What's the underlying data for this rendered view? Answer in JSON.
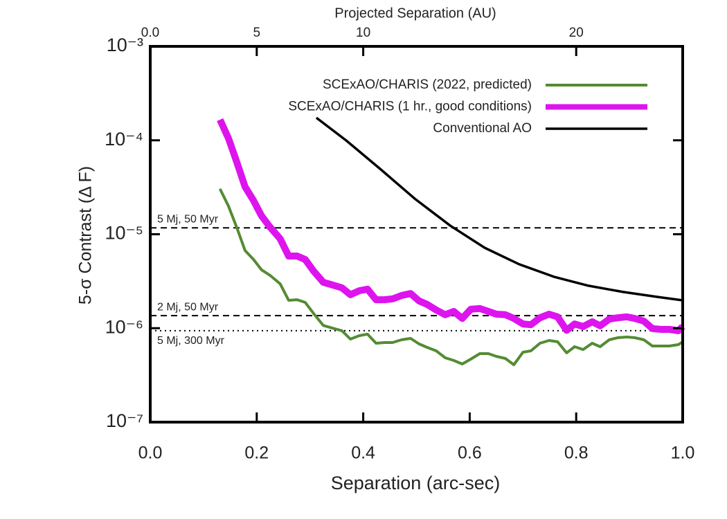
{
  "chart_data": {
    "type": "line",
    "title": "Projected Separation (AU)",
    "x_label": "Separation (arc-sec)",
    "y_label": "5-σ Contrast (Δ F)",
    "log_y": true,
    "legend": "upper right",
    "xlim": [
      0,
      1
    ],
    "xticks": [
      {
        "value": 0,
        "label": "0.0"
      },
      0.2,
      0.4,
      0.6,
      0.8,
      {
        "value": 1,
        "label": "1.0"
      }
    ],
    "x2lim": [
      0,
      25
    ],
    "x2ticks": [
      {
        "value": 0,
        "label": "0.0"
      },
      5,
      10,
      20
    ],
    "ylim": [
      1e-07,
      0.001
    ],
    "yticks": [
      {
        "value": 1e-07,
        "label": "10⁻⁷"
      },
      {
        "value": 1e-06,
        "label": "10⁻⁶"
      },
      {
        "value": 1e-05,
        "label": "10⁻⁵"
      },
      {
        "value": 0.0001,
        "label": "10⁻⁴"
      },
      {
        "value": 0.001,
        "label": "10⁻³"
      }
    ],
    "reference_lines": [
      {
        "label": "5 Mj, 50 Myr",
        "value": 1.17e-05,
        "style": "dashed"
      },
      {
        "label": "2 Mj, 50 Myr",
        "value": 1.36e-06,
        "style": "dashed"
      },
      {
        "label": "5 Mj, 300 Myr",
        "value": 9.4e-07,
        "style": "dotted"
      }
    ],
    "series": [
      {
        "name": "SCExAO/CHARIS (2022, predicted)",
        "color": "#548b33",
        "width": 4,
        "x": [
          0.131,
          0.147,
          0.163,
          0.178,
          0.194,
          0.209,
          0.225,
          0.244,
          0.26,
          0.276,
          0.291,
          0.307,
          0.325,
          0.343,
          0.36,
          0.376,
          0.393,
          0.408,
          0.424,
          0.44,
          0.455,
          0.472,
          0.489,
          0.505,
          0.52,
          0.537,
          0.554,
          0.57,
          0.586,
          0.602,
          0.619,
          0.635,
          0.65,
          0.667,
          0.683,
          0.7,
          0.715,
          0.732,
          0.749,
          0.765,
          0.782,
          0.797,
          0.813,
          0.83,
          0.845,
          0.862,
          0.878,
          0.895,
          0.91,
          0.927,
          0.943,
          0.96,
          0.975,
          0.992,
          1.0
        ],
        "values": [
          3.04e-05,
          1.99e-05,
          1.16e-05,
          6.71e-06,
          5.38e-06,
          4.18e-06,
          3.65e-06,
          2.97e-06,
          1.98e-06,
          2.01e-06,
          1.88e-06,
          1.43e-06,
          1.07e-06,
          1e-06,
          9.4e-07,
          7.65e-07,
          8.34e-07,
          8.63e-07,
          6.92e-07,
          7.03e-07,
          7.03e-07,
          7.53e-07,
          7.78e-07,
          6.8e-07,
          6.25e-07,
          5.74e-07,
          4.84e-07,
          4.53e-07,
          4.16e-07,
          4.68e-07,
          5.36e-07,
          5.36e-07,
          5.01e-07,
          4.76e-07,
          4.08e-07,
          5.55e-07,
          5.74e-07,
          6.92e-07,
          7.4e-07,
          7.16e-07,
          5.46e-07,
          6.35e-07,
          5.93e-07,
          6.92e-07,
          6.35e-07,
          7.53e-07,
          7.92e-07,
          8.05e-07,
          7.92e-07,
          7.53e-07,
          6.46e-07,
          6.46e-07,
          6.46e-07,
          6.68e-07,
          7.16e-07
        ]
      },
      {
        "name": "SCExAO/CHARIS (1 hr., good conditions)",
        "color": "#dd14ee",
        "width": 10,
        "x": [
          0.131,
          0.147,
          0.163,
          0.178,
          0.194,
          0.209,
          0.225,
          0.244,
          0.26,
          0.276,
          0.291,
          0.307,
          0.325,
          0.343,
          0.36,
          0.376,
          0.393,
          0.408,
          0.424,
          0.44,
          0.455,
          0.472,
          0.489,
          0.505,
          0.52,
          0.537,
          0.554,
          0.57,
          0.586,
          0.602,
          0.619,
          0.635,
          0.65,
          0.667,
          0.683,
          0.7,
          0.715,
          0.732,
          0.749,
          0.765,
          0.782,
          0.797,
          0.813,
          0.83,
          0.845,
          0.862,
          0.878,
          0.895,
          0.91,
          0.927,
          0.943,
          0.96,
          0.975,
          0.992,
          1.0
        ],
        "values": [
          0.000166,
          0.000105,
          5.78e-05,
          3.2e-05,
          2.28e-05,
          1.57e-05,
          1.19e-05,
          8.95e-06,
          5.86e-06,
          5.86e-06,
          5.38e-06,
          4.04e-06,
          3.08e-06,
          2.88e-06,
          2.69e-06,
          2.27e-06,
          2.51e-06,
          2.6e-06,
          2.01e-06,
          2.01e-06,
          2.05e-06,
          2.23e-06,
          2.34e-06,
          1.95e-06,
          1.79e-06,
          1.56e-06,
          1.39e-06,
          1.51e-06,
          1.27e-06,
          1.59e-06,
          1.62e-06,
          1.51e-06,
          1.41e-06,
          1.39e-06,
          1.27e-06,
          1.11e-06,
          1.09e-06,
          1.29e-06,
          1.41e-06,
          1.32e-06,
          9.5e-07,
          1.11e-06,
          1.04e-06,
          1.17e-06,
          1.06e-06,
          1.25e-06,
          1.29e-06,
          1.32e-06,
          1.27e-06,
          1.19e-06,
          9.9e-07,
          9.7e-07,
          9.7e-07,
          9.4e-07,
          1.04e-06
        ]
      },
      {
        "name": "Conventional AO",
        "color": "#000000",
        "width": 3.5,
        "x": [
          0.312,
          0.368,
          0.433,
          0.498,
          0.563,
          0.628,
          0.693,
          0.758,
          0.823,
          0.888,
          0.953,
          1.0
        ],
        "values": [
          0.000174,
          9.95e-05,
          4.89e-05,
          2.36e-05,
          1.24e-05,
          7.18e-06,
          4.79e-06,
          3.53e-06,
          2.83e-06,
          2.43e-06,
          2.15e-06,
          1.98e-06
        ]
      }
    ]
  }
}
